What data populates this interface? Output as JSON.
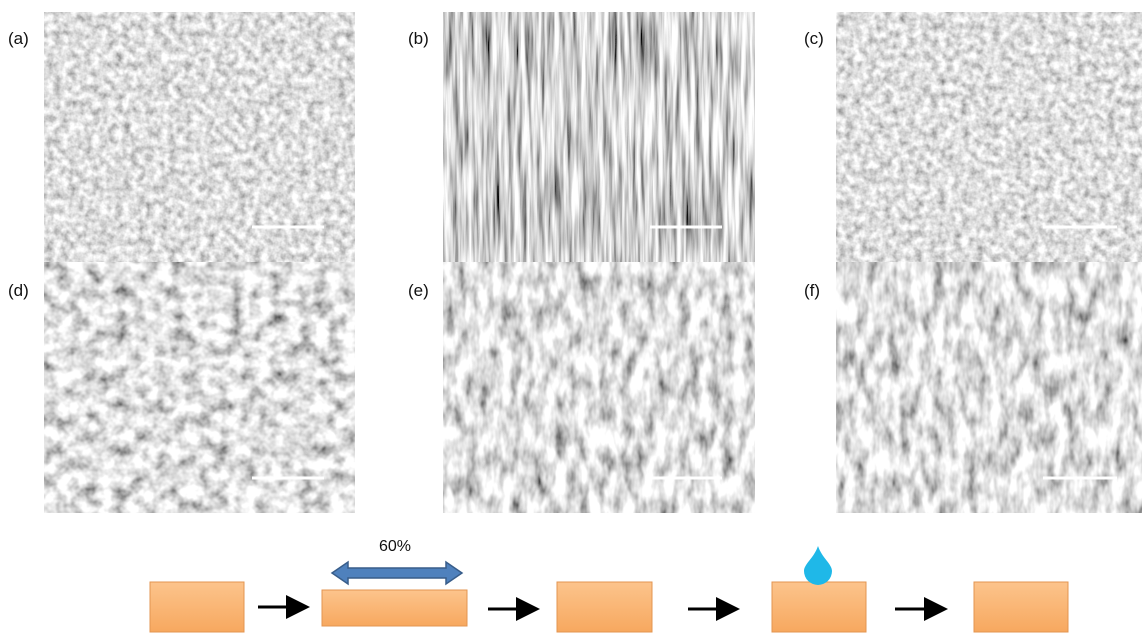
{
  "panels": [
    {
      "label": "(a)"
    },
    {
      "label": "(b)"
    },
    {
      "label": "(c)"
    },
    {
      "label": "(d)"
    },
    {
      "label": "(e)"
    },
    {
      "label": "(f)"
    }
  ],
  "diagram": {
    "stretch_label": "60%"
  }
}
